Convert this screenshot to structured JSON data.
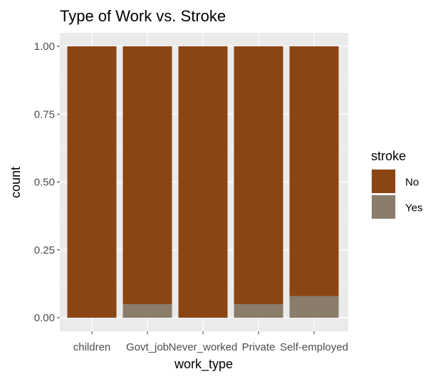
{
  "chart_data": {
    "type": "bar",
    "stacked": true,
    "title": "Type of Work vs. Stroke",
    "xlabel": "work_type",
    "ylabel": "count",
    "ylim": [
      0,
      1
    ],
    "yticks": [
      "0.00",
      "0.25",
      "0.50",
      "0.75",
      "1.00"
    ],
    "categories": [
      "children",
      "Govt_job",
      "Never_worked",
      "Private",
      "Self-employed"
    ],
    "series": [
      {
        "name": "No",
        "color": "#8B4513",
        "values": [
          1.0,
          0.95,
          1.0,
          0.95,
          0.92
        ]
      },
      {
        "name": "Yes",
        "color": "#8B7D6B",
        "values": [
          0.0,
          0.05,
          0.0,
          0.05,
          0.08
        ]
      }
    ],
    "legend": {
      "title": "stroke",
      "position": "right"
    },
    "grid": true,
    "panel_background": "#EBEBEB"
  }
}
